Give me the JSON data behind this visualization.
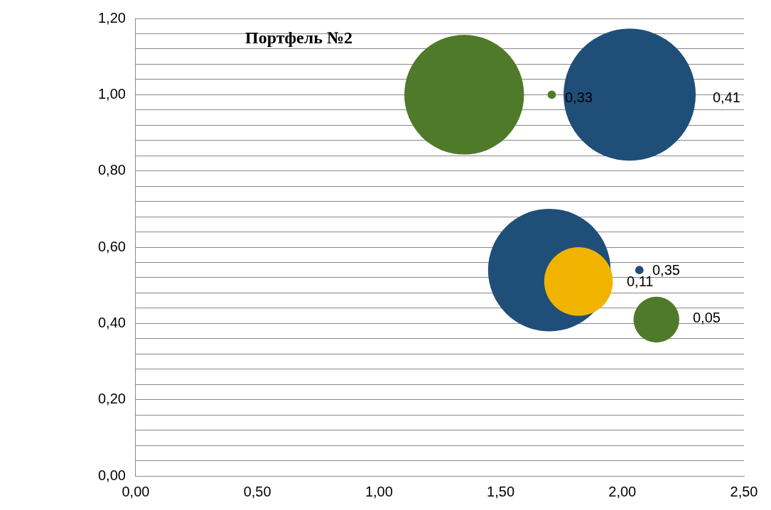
{
  "chart_data": {
    "type": "bubble",
    "title": "Портфель №2",
    "x": [
      1.35,
      1.71,
      2.03,
      1.7,
      1.82,
      2.07,
      2.14
    ],
    "values": [
      1.0,
      1.0,
      1.0,
      0.54,
      0.51,
      0.54,
      0.41
    ],
    "sizes": [
      0.82,
      0.004,
      1,
      0.86,
      0.27,
      0.004,
      0.12
    ],
    "colors": [
      "#4f7a2a",
      "#4f7a2a",
      "#1f4e79",
      "#1f4e79",
      "#f0b400",
      "#1f4e79",
      "#4f7a2a"
    ],
    "annotations": [
      "0,33",
      "0,41",
      "0,35",
      "0,11",
      "0,05"
    ],
    "xlim": [
      0,
      2.5
    ],
    "xticks": [
      {
        "value": 0,
        "label": "0,00"
      },
      {
        "value": 0.5,
        "label": "0,50"
      },
      {
        "value": 1,
        "label": "1,00"
      },
      {
        "value": 1.5,
        "label": "1,50"
      },
      {
        "value": 2,
        "label": "2,00"
      },
      {
        "value": 2.5,
        "label": "2,50"
      }
    ],
    "ylim": [
      0,
      1.2
    ],
    "yticks": [
      {
        "value": 0,
        "label": "0,00"
      },
      {
        "value": 0.04,
        "label": null
      },
      {
        "value": 0.08,
        "label": null
      },
      {
        "value": 0.12,
        "label": null
      },
      {
        "value": 0.16,
        "label": null
      },
      {
        "value": 0.2,
        "label": "0,20"
      },
      {
        "value": 0.24,
        "label": null
      },
      {
        "value": 0.28,
        "label": null
      },
      {
        "value": 0.32,
        "label": null
      },
      {
        "value": 0.36,
        "label": null
      },
      {
        "value": 0.4,
        "label": "0,40"
      },
      {
        "value": 0.44,
        "label": null
      },
      {
        "value": 0.48,
        "label": null
      },
      {
        "value": 0.52,
        "label": null
      },
      {
        "value": 0.56,
        "label": null
      },
      {
        "value": 0.6,
        "label": "0,60"
      },
      {
        "value": 0.64,
        "label": null
      },
      {
        "value": 0.68,
        "label": null
      },
      {
        "value": 0.72,
        "label": null
      },
      {
        "value": 0.76,
        "label": null
      },
      {
        "value": 0.8,
        "label": "0,80"
      },
      {
        "value": 0.84,
        "label": null
      },
      {
        "value": 0.88,
        "label": null
      },
      {
        "value": 0.92,
        "label": null
      },
      {
        "value": 0.96,
        "label": null
      },
      {
        "value": 1.0,
        "label": "1,00"
      },
      {
        "value": 1.04,
        "label": null
      },
      {
        "value": 1.08,
        "label": null
      },
      {
        "value": 1.12,
        "label": null
      },
      {
        "value": 1.16,
        "label": null
      },
      {
        "value": 1.2,
        "label": "1,20"
      }
    ],
    "grid": "y"
  }
}
